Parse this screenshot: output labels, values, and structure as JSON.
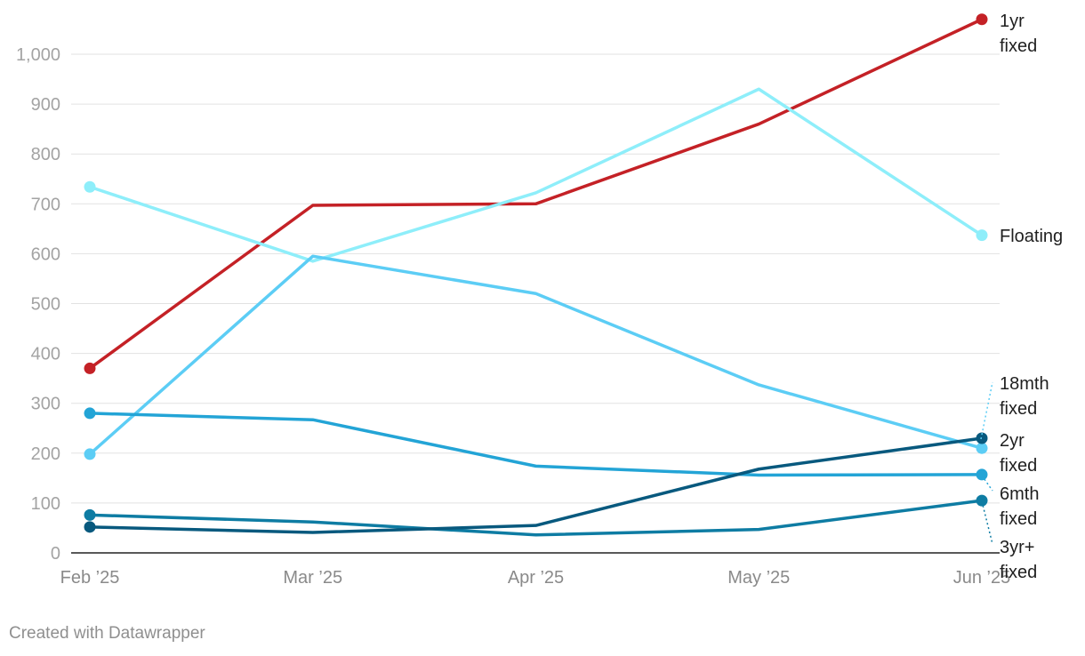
{
  "chart_data": {
    "type": "line",
    "x": [
      "Feb ’25",
      "Mar ’25",
      "Apr ’25",
      "May ’25",
      "Jun ’25"
    ],
    "ylim": [
      0,
      1100
    ],
    "yticks": [
      0,
      100,
      200,
      300,
      400,
      500,
      600,
      700,
      800,
      900,
      1000
    ],
    "ytick_labels": [
      "0",
      "100",
      "200",
      "300",
      "400",
      "500",
      "600",
      "700",
      "800",
      "900",
      "1,000"
    ],
    "grid": true,
    "legend": "direct labels at line ends (right)",
    "series": [
      {
        "name": "1yr fixed",
        "label_lines": [
          "1yr",
          "fixed"
        ],
        "color": "#c42126",
        "values": [
          370,
          697,
          700,
          860,
          1070
        ]
      },
      {
        "name": "Floating",
        "label_lines": [
          "Floating"
        ],
        "color": "#8eeefa",
        "values": [
          734,
          585,
          722,
          930,
          637
        ]
      },
      {
        "name": "18mth fixed",
        "label_lines": [
          "18mth",
          "fixed"
        ],
        "color": "#5ccdf5",
        "values": [
          198,
          595,
          520,
          337,
          210
        ]
      },
      {
        "name": "2yr fixed",
        "label_lines": [
          "2yr",
          "fixed"
        ],
        "color": "#23a4d6",
        "values": [
          280,
          267,
          174,
          156,
          157
        ]
      },
      {
        "name": "6mth fixed",
        "label_lines": [
          "6mth",
          "fixed"
        ],
        "color": "#0e7ca3",
        "values": [
          76,
          62,
          36,
          47,
          105
        ]
      },
      {
        "name": "3yr+ fixed",
        "label_lines": [
          "3yr+",
          "fixed"
        ],
        "color": "#08597e",
        "values": [
          52,
          41,
          55,
          168,
          230
        ]
      }
    ]
  },
  "footer": {
    "credit": "Created with Datawrapper"
  }
}
